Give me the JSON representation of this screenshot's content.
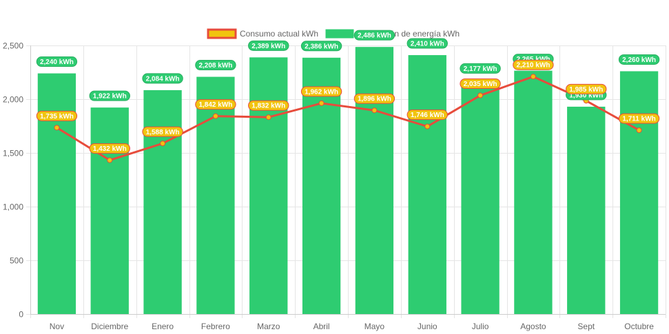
{
  "chart_data": {
    "type": "bar",
    "title": "",
    "xlabel": "",
    "ylabel": "",
    "ylim": [
      0,
      2500
    ],
    "yticks": [
      "0",
      "500",
      "1,000",
      "1,500",
      "2,000",
      "2,500"
    ],
    "ytick_values": [
      0,
      500,
      1000,
      1500,
      2000,
      2500
    ],
    "grid": true,
    "legend_position": "top-center",
    "categories": [
      "Nov",
      "Diciembre",
      "Enero",
      "Febrero",
      "Marzo",
      "Abril",
      "Mayo",
      "Junio",
      "Julio",
      "Agosto",
      "Sept",
      "Octubre"
    ],
    "series": [
      {
        "name": "Consumo actual kWh",
        "type": "line",
        "color": "#e74c3c",
        "point_color": "#f1c40f",
        "label_bg": "#f1c40f",
        "values": [
          1735,
          1432,
          1588,
          1842,
          1832,
          1962,
          1896,
          1746,
          2035,
          2210,
          1985,
          1711
        ],
        "labels": [
          "1,735 kWh",
          "1,432 kWh",
          "1,588 kWh",
          "1,842 kWh",
          "1,832 kWh",
          "1,962 kWh",
          "1,896 kWh",
          "1,746 kWh",
          "2,035 kWh",
          "2,210 kWh",
          "1,985 kWh",
          "1,711 kWh"
        ]
      },
      {
        "name": "Producción de energía kWh",
        "type": "bar",
        "color": "#2ecc71",
        "values": [
          2240,
          1922,
          2084,
          2208,
          2389,
          2386,
          2486,
          2410,
          2177,
          2265,
          1930,
          2260
        ],
        "labels": [
          "2,240 kWh",
          "1,922 kWh",
          "2,084 kWh",
          "2,208 kWh",
          "2,389 kWh",
          "2,386 kWh",
          "2,486 kWh",
          "2,410 kWh",
          "2,177 kWh",
          "2,265 kWh",
          "1,930 kWh",
          "2,260 kWh"
        ]
      }
    ]
  }
}
